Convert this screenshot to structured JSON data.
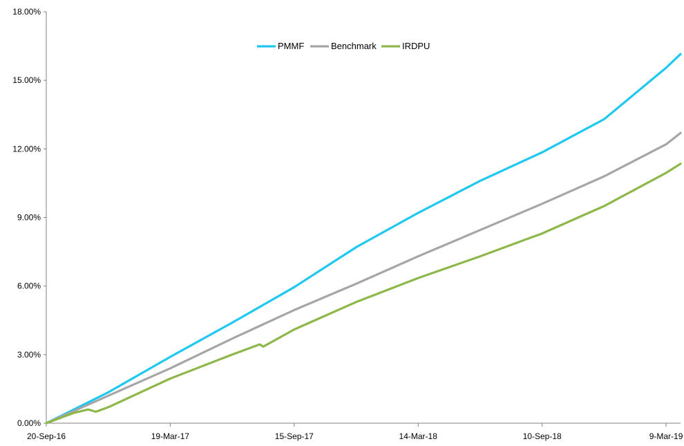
{
  "chart_data": {
    "type": "line",
    "title": "",
    "xlabel": "",
    "ylabel": "",
    "x_ticks": [
      "20-Sep-16",
      "19-Mar-17",
      "15-Sep-17",
      "14-Mar-18",
      "10-Sep-18",
      "9-Mar-19"
    ],
    "y_ticks": [
      "0.00%",
      "3.00%",
      "6.00%",
      "9.00%",
      "12.00%",
      "15.00%",
      "18.00%"
    ],
    "ylim": [
      0,
      18
    ],
    "xlim": [
      "2016-09-20",
      "2019-03-30"
    ],
    "legend_position": "top-center",
    "grid": false,
    "series": [
      {
        "name": "PMMF",
        "color": "#1ec8f0",
        "points": [
          [
            "2016-09-20",
            0.0
          ],
          [
            "2016-12-19",
            1.35
          ],
          [
            "2017-03-19",
            2.9
          ],
          [
            "2017-06-17",
            4.4
          ],
          [
            "2017-09-15",
            5.95
          ],
          [
            "2017-12-14",
            7.7
          ],
          [
            "2018-03-14",
            9.2
          ],
          [
            "2018-06-12",
            10.6
          ],
          [
            "2018-09-10",
            11.85
          ],
          [
            "2018-12-09",
            13.3
          ],
          [
            "2019-03-09",
            15.55
          ],
          [
            "2019-03-30",
            16.15
          ]
        ]
      },
      {
        "name": "Benchmark",
        "color": "#a6a6a6",
        "points": [
          [
            "2016-09-20",
            0.0
          ],
          [
            "2016-12-19",
            1.2
          ],
          [
            "2017-03-19",
            2.4
          ],
          [
            "2017-06-17",
            3.7
          ],
          [
            "2017-09-15",
            4.95
          ],
          [
            "2017-12-14",
            6.1
          ],
          [
            "2018-03-14",
            7.3
          ],
          [
            "2018-06-12",
            8.45
          ],
          [
            "2018-09-10",
            9.6
          ],
          [
            "2018-12-09",
            10.8
          ],
          [
            "2019-03-09",
            12.2
          ],
          [
            "2019-03-30",
            12.7
          ]
        ]
      },
      {
        "name": "IRDPU",
        "color": "#8db849",
        "points": [
          [
            "2016-09-20",
            0.0
          ],
          [
            "2016-10-30",
            0.45
          ],
          [
            "2016-11-20",
            0.6
          ],
          [
            "2016-12-01",
            0.5
          ],
          [
            "2016-12-19",
            0.7
          ],
          [
            "2017-03-19",
            1.95
          ],
          [
            "2017-06-17",
            3.0
          ],
          [
            "2017-07-27",
            3.45
          ],
          [
            "2017-08-01",
            3.35
          ],
          [
            "2017-09-15",
            4.1
          ],
          [
            "2017-12-14",
            5.3
          ],
          [
            "2018-03-14",
            6.35
          ],
          [
            "2018-06-12",
            7.3
          ],
          [
            "2018-09-10",
            8.3
          ],
          [
            "2018-12-09",
            9.5
          ],
          [
            "2019-03-09",
            10.95
          ],
          [
            "2019-03-30",
            11.35
          ]
        ]
      }
    ]
  }
}
